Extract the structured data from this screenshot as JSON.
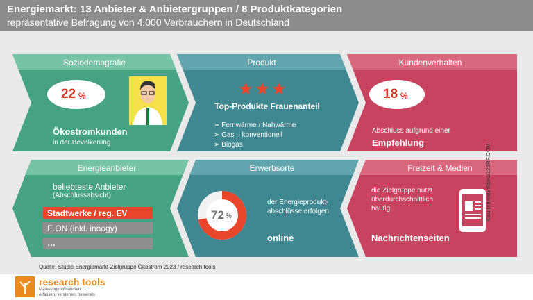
{
  "header": {
    "title": "Energiemarkt: 13 Anbieter & Anbietergruppen / 8 Produktkategorien",
    "subtitle": "repräsentative Befragung von 4.000 Verbrauchern in Deutschland"
  },
  "panels": [
    {
      "title": "Soziodemografie",
      "value": 22,
      "unit": "%",
      "label": "Ökostromkunden",
      "sublabel": "in der Bevölkerung"
    },
    {
      "title": "Produkt",
      "heading": "Top-Produkte Frauenanteil",
      "items": [
        "Fernwärme / Nahwärme",
        "Gas – konventionell",
        "Biogas"
      ]
    },
    {
      "title": "Kundenverhalten",
      "value": 18,
      "unit": "%",
      "label": "Abschluss aufgrund einer",
      "emphasis": "Empfehlung"
    },
    {
      "title": "Energieanbieter",
      "label": "beliebteste Anbieter",
      "sublabel": "(Abschlussabsicht)",
      "items": [
        "Stadtwerke / reg. EV",
        "E.ON (inkl. innogy)",
        "…"
      ]
    },
    {
      "title": "Erwerbsorte",
      "value": 72,
      "unit": "%",
      "lines": [
        "der Energieprodukt-",
        "abschlüsse erfolgen"
      ],
      "emphasis": "online"
    },
    {
      "title": "Freizeit & Medien",
      "lines": [
        "die Zielgruppe nutzt",
        "überdurchschnittlich",
        "häufig"
      ],
      "emphasis": "Nachrichtenseiten"
    }
  ],
  "source": "Quelle: Studie Energiemarkt-Zielgruppe  Ökostrom 2023 / research tools",
  "credit": "©summersunftbird/123RF.COM",
  "logo": {
    "name": "research tools",
    "tagline": [
      "Marketingmaßnahmen",
      "erfassen, verstehen, bewerten"
    ]
  }
}
